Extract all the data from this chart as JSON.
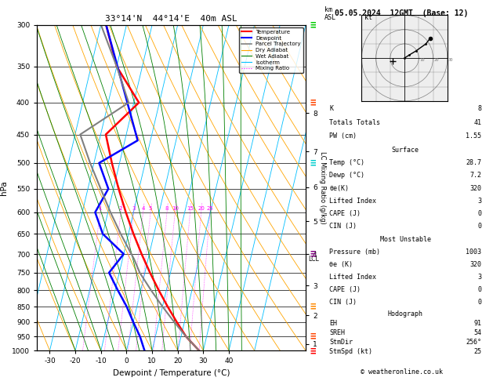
{
  "title_left": "33°14'N  44°14'E  40m ASL",
  "title_right": "05.05.2024  12GMT  (Base: 12)",
  "pressure_levels": [
    300,
    350,
    400,
    450,
    500,
    550,
    600,
    650,
    700,
    750,
    800,
    850,
    900,
    950,
    1000
  ],
  "temp_range": [
    -35,
    40
  ],
  "km_ticks": [
    1,
    2,
    3,
    4,
    5,
    6,
    7,
    8
  ],
  "km_pressures": [
    976,
    878,
    786,
    700,
    620,
    547,
    479,
    416
  ],
  "lcl_pressure": 713,
  "temp_profile_p": [
    1003,
    950,
    900,
    850,
    800,
    750,
    700,
    650,
    600,
    550,
    500,
    450,
    400,
    350,
    300
  ],
  "temp_profile_t": [
    28.7,
    22.0,
    17.0,
    12.0,
    7.0,
    2.0,
    -3.0,
    -8.0,
    -13.0,
    -18.0,
    -23.0,
    -28.0,
    -18.0,
    -30.0,
    -38.0
  ],
  "dewp_profile_p": [
    1003,
    950,
    900,
    850,
    800,
    750,
    700,
    650,
    600,
    550,
    500,
    460,
    300
  ],
  "dewp_profile_t": [
    7.2,
    4.0,
    0.0,
    -4.0,
    -9.0,
    -14.0,
    -10.0,
    -20.0,
    -25.0,
    -22.0,
    -28.0,
    -15.0,
    -38.0
  ],
  "parcel_profile_p": [
    1003,
    950,
    900,
    850,
    800,
    750,
    713,
    700,
    650,
    600,
    550,
    500,
    450,
    400,
    350,
    300
  ],
  "parcel_profile_t": [
    28.7,
    22.0,
    16.0,
    10.0,
    4.0,
    -2.0,
    -5.5,
    -7.0,
    -13.0,
    -19.0,
    -25.0,
    -31.5,
    -38.0,
    -22.0,
    -30.0,
    -40.0
  ],
  "skew_factor": 30.0,
  "bg_color": "#ffffff",
  "temp_color": "#ff0000",
  "dewp_color": "#0000ff",
  "parcel_color": "#808080",
  "dry_adiabat_color": "#ffa500",
  "wet_adiabat_color": "#008000",
  "isotherm_color": "#00bfff",
  "mixing_ratio_color": "#ff00ff",
  "wind_barb_pressures": [
    1003,
    950,
    850,
    700,
    500,
    400,
    300
  ],
  "wind_barb_colors": [
    "#ff0000",
    "#ff4400",
    "#ff8800",
    "#800080",
    "#00cccc",
    "#ff4400",
    "#00cc00"
  ],
  "hodo_u": [
    0,
    3,
    8,
    15,
    18
  ],
  "hodo_v": [
    0,
    2,
    5,
    10,
    14
  ],
  "general_stats": [
    [
      "K",
      "8"
    ],
    [
      "Totals Totals",
      "41"
    ],
    [
      "PW (cm)",
      "1.55"
    ]
  ],
  "surface_stats": [
    [
      "Temp (°C)",
      "28.7"
    ],
    [
      "Dewp (°C)",
      "7.2"
    ],
    [
      "θe(K)",
      "320"
    ],
    [
      "Lifted Index",
      "3"
    ],
    [
      "CAPE (J)",
      "0"
    ],
    [
      "CIN (J)",
      "0"
    ]
  ],
  "mu_stats": [
    [
      "Pressure (mb)",
      "1003"
    ],
    [
      "θe (K)",
      "320"
    ],
    [
      "Lifted Index",
      "3"
    ],
    [
      "CAPE (J)",
      "0"
    ],
    [
      "CIN (J)",
      "0"
    ]
  ],
  "hodo_stats": [
    [
      "EH",
      "91"
    ],
    [
      "SREH",
      "54"
    ],
    [
      "StmDir",
      "256°"
    ],
    [
      "StmSpd (kt)",
      "25"
    ]
  ]
}
